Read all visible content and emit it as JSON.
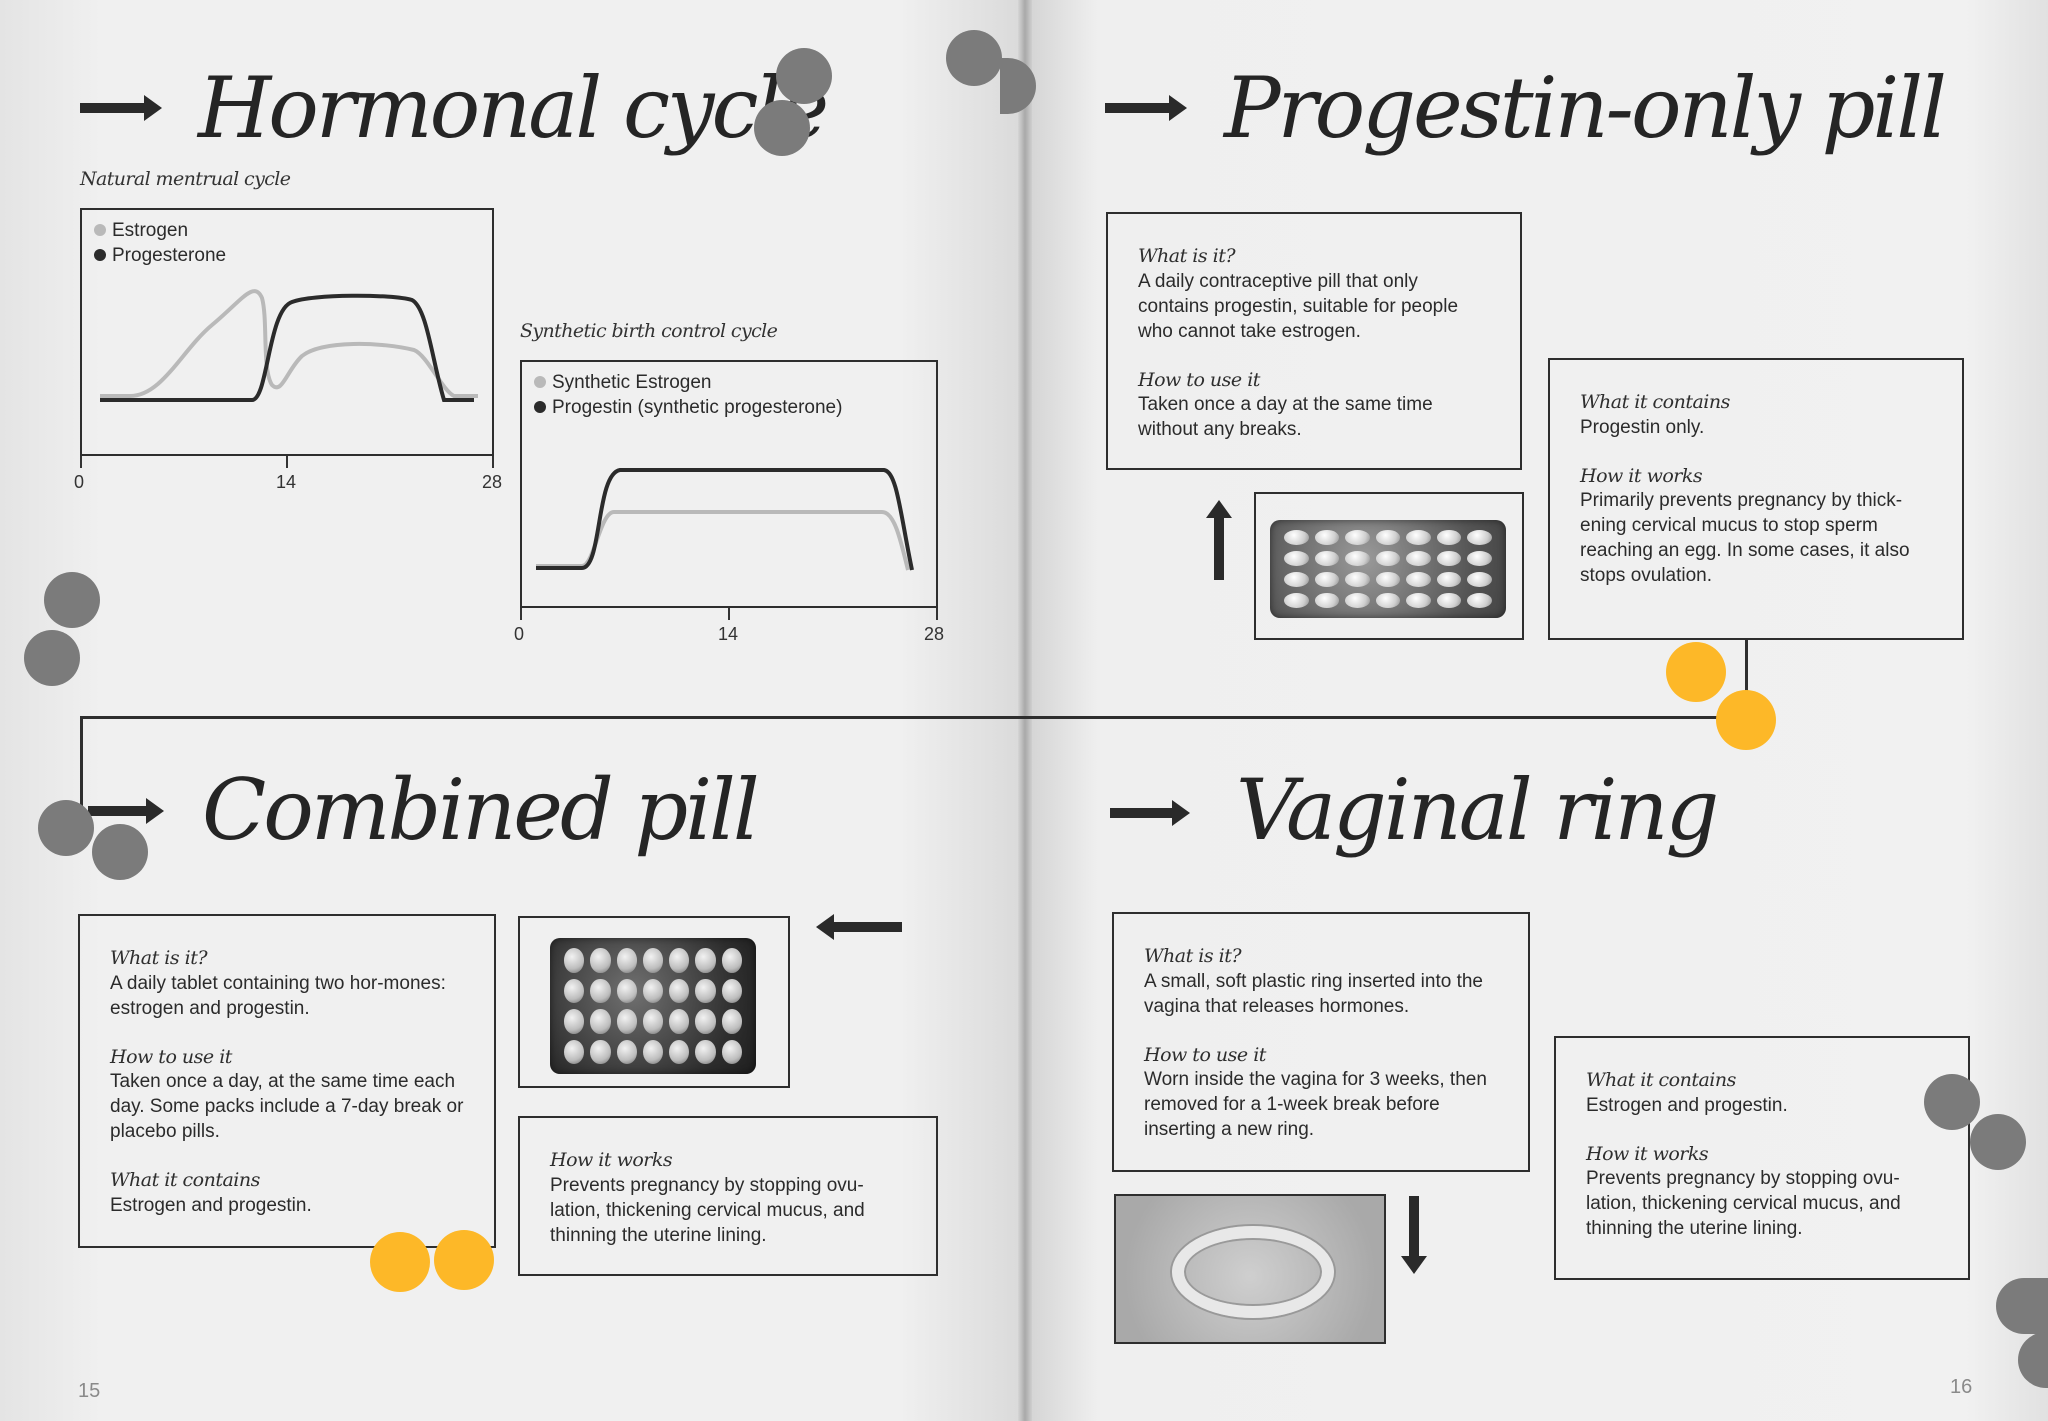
{
  "hormonal": {
    "title": "Hormonal cycle",
    "natural": {
      "caption": "Natural mentrual cycle",
      "legend": [
        "Estrogen",
        "Progesterone"
      ],
      "ticks": [
        "0",
        "14",
        "28"
      ]
    },
    "synthetic": {
      "caption": "Synthetic birth control cycle",
      "legend": [
        "Synthetic Estrogen",
        "Progestin (synthetic progesterone)"
      ],
      "ticks": [
        "0",
        "14",
        "28"
      ]
    },
    "colors": {
      "estrogen": "#b9b9b9",
      "progesterone": "#2b2b2b"
    }
  },
  "progestin": {
    "title": "Progestin-only pill",
    "box1": {
      "h1": "What is it?",
      "p1": "A daily contraceptive pill that only contains progestin, suitable for people who cannot take estrogen.",
      "h2": "How to use it",
      "p2": "Taken once a day at the same time without any breaks."
    },
    "box2": {
      "h1": "What it contains",
      "p1": "Progestin only.",
      "h2": "How it works",
      "p2": "Primarily prevents pregnancy by thick-ening cervical mucus to stop sperm reaching an egg. In some cases, it also stops ovulation."
    }
  },
  "combined": {
    "title": "Combined pill",
    "box1": {
      "h1": "What is it?",
      "p1": "A daily tablet containing two hor-mones: estrogen and progestin.",
      "h2": "How to use it",
      "p2": "Taken once a day, at the same time each day. Some packs include a 7-day break or placebo pills.",
      "h3": "What it contains",
      "p3": "Estrogen and progestin."
    },
    "box2": {
      "h1": "How it works",
      "p1": "Prevents pregnancy by stopping ovu-lation, thickening cervical mucus, and thinning the uterine lining."
    }
  },
  "ring": {
    "title": "Vaginal ring",
    "box1": {
      "h1": "What is it?",
      "p1": "A small, soft plastic ring inserted into the vagina that releases hormones.",
      "h2": "How to use it",
      "p2": "Worn inside the vagina for 3 weeks, then removed for a 1-week break before inserting a new ring."
    },
    "box2": {
      "h1": "What it contains",
      "p1": "Estrogen and progestin.",
      "h2": "How it works",
      "p2": "Prevents pregnancy by stopping ovu-lation, thickening cervical mucus, and thinning the uterine lining."
    }
  },
  "page_numbers": {
    "left": "15",
    "right": "16"
  },
  "accent": {
    "yellow": "#fdb828",
    "grey": "#7b7b7b"
  }
}
